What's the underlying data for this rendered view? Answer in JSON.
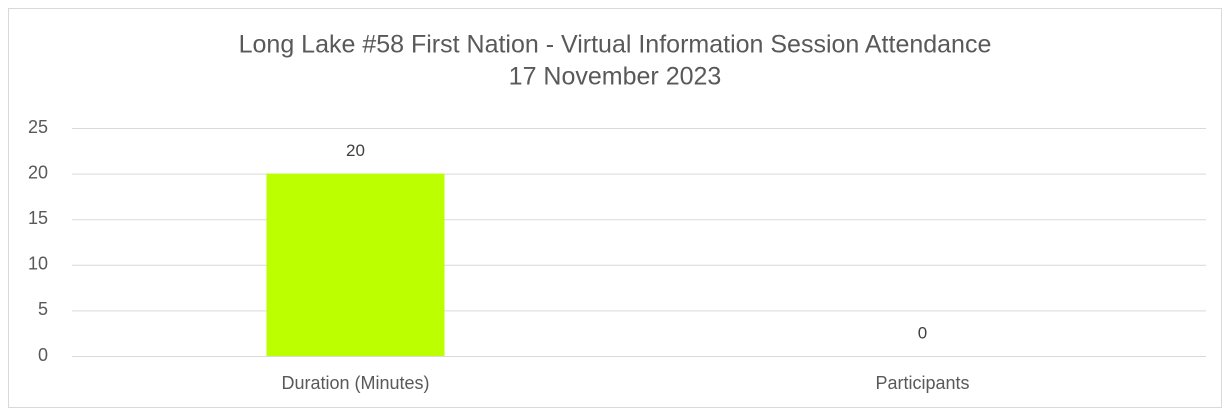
{
  "chart_data": {
    "type": "bar",
    "title": "Long Lake #58 First Nation - Virtual Information Session Attendance",
    "subtitle": "17 November 2023",
    "categories": [
      "Duration (Minutes)",
      "Participants"
    ],
    "values": [
      20,
      0
    ],
    "color": "#bbff00",
    "ylim": [
      0,
      25
    ],
    "yticks": [
      0,
      5,
      10,
      15,
      20,
      25
    ],
    "grid": true
  }
}
